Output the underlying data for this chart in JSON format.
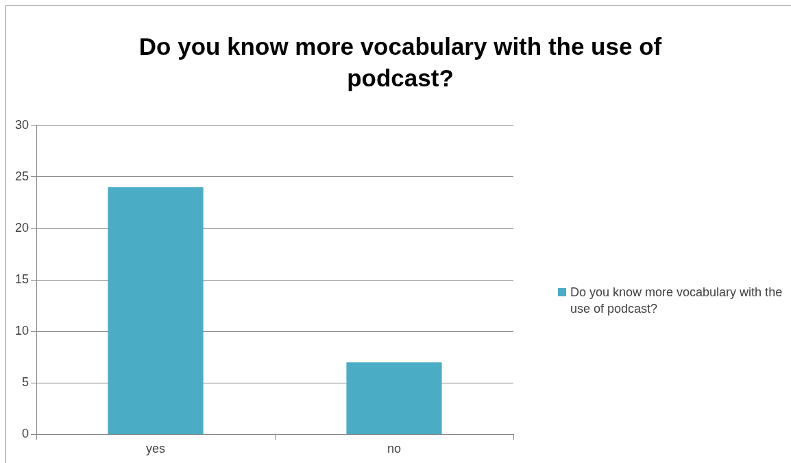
{
  "chart_data": {
    "type": "bar",
    "title": "Do you know more vocabulary with the use of podcast?",
    "categories": [
      "yes",
      "no"
    ],
    "series": [
      {
        "name": "Do you know more vocabulary with the use of podcast?",
        "color": "#4bacc6",
        "values": [
          24,
          7
        ]
      }
    ],
    "ylim": [
      0,
      30
    ],
    "yticks": [
      0,
      5,
      10,
      15,
      20,
      25,
      30
    ],
    "grid": "y",
    "legend": "right"
  }
}
